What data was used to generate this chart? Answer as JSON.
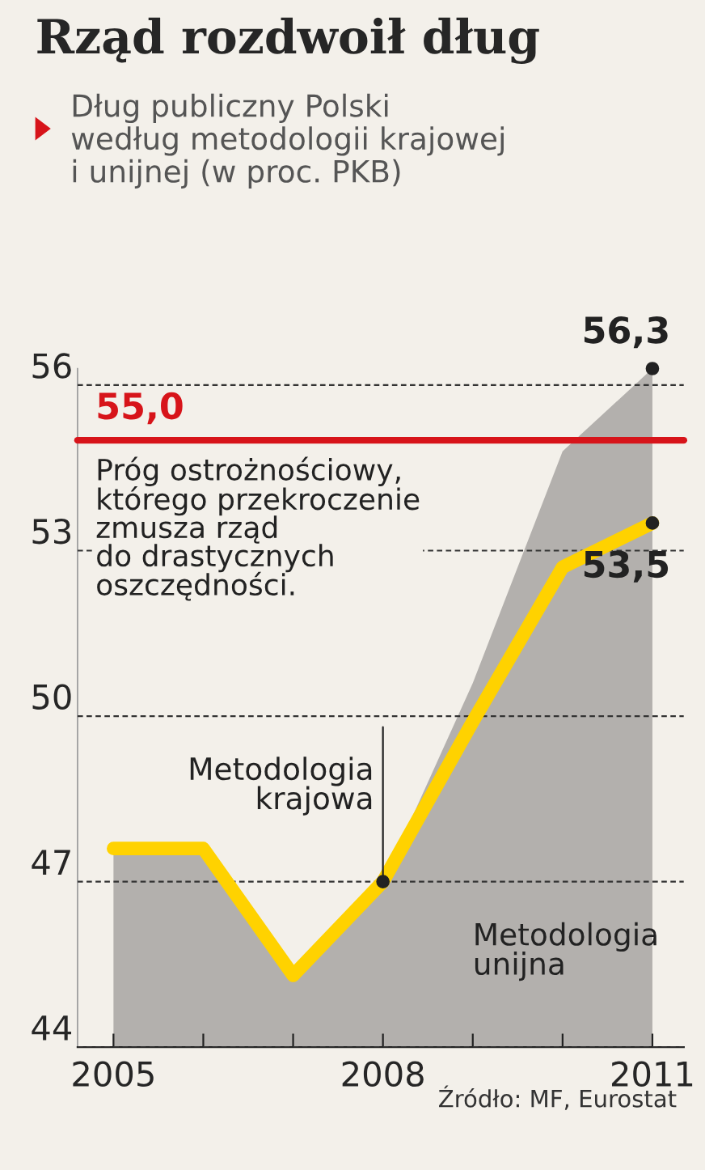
{
  "chart_data": {
    "type": "area",
    "title": "Rząd rozdwoił dług",
    "subtitle": "Dług publiczny Polski\nwedług metodologii krajowej\ni unijnej (w proc. PKB)",
    "x": [
      2005,
      2006,
      2007,
      2008,
      2009,
      2010,
      2011
    ],
    "series": [
      {
        "name": "Metodologia unijna",
        "color": "#b3b0ad",
        "values": [
          47.5,
          47.5,
          45.2,
          47.0,
          50.6,
          54.8,
          56.3
        ]
      },
      {
        "name": "Metodologia krajowa",
        "type": "line",
        "color": "#ffd200",
        "values": [
          47.6,
          47.6,
          45.3,
          47.0,
          49.9,
          52.7,
          53.5
        ]
      }
    ],
    "xlim": [
      2004.6,
      2011.35
    ],
    "ylim": [
      44,
      56.3
    ],
    "xticks": [
      2005,
      {
        "value": 2006,
        "label": null
      },
      {
        "value": 2007,
        "label": null
      },
      2008,
      {
        "value": 2009,
        "label": null
      },
      {
        "value": 2010,
        "label": null
      },
      2011
    ],
    "yticks": [
      44,
      47,
      50,
      53,
      56
    ],
    "grid": "y",
    "ref_lines": [
      {
        "axis": "y",
        "value": 55.0,
        "label": "55,0",
        "color": "#d7141a"
      }
    ],
    "annotations": [
      {
        "text": "56,3",
        "x": 2011,
        "y": 56.3
      },
      {
        "text": "53,5",
        "x": 2011,
        "y": 53.5
      },
      "Próg ostrożnościowy,\nktórego przekroczenie\nzmusza rząd\ndo drastycznych\noszczędności.",
      "Źródło: MF, Eurostat"
    ]
  }
}
